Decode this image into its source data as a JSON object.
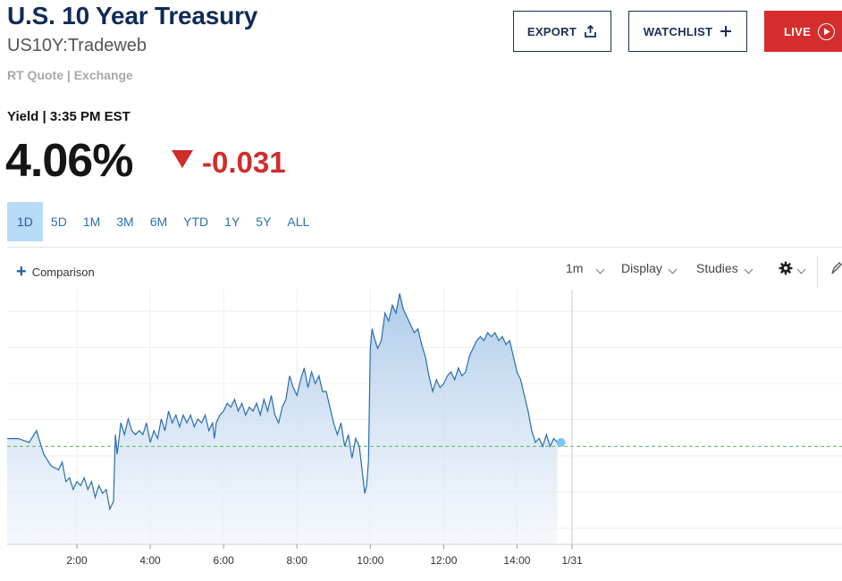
{
  "header": {
    "title": "U.S. 10 Year Treasury",
    "symbol": "US10Y:Tradeweb",
    "quote_source": "RT Quote | Exchange",
    "export_label": "EXPORT",
    "watchlist_label": "WATCHLIST",
    "live_label": "LIVE"
  },
  "quote": {
    "yield_label": "Yield | 3:35 PM EST",
    "price": "4.06%",
    "change": "-0.031",
    "change_color": "#d12c2c"
  },
  "ranges": [
    {
      "label": "1D",
      "active": true
    },
    {
      "label": "5D"
    },
    {
      "label": "1M"
    },
    {
      "label": "3M"
    },
    {
      "label": "6M"
    },
    {
      "label": "YTD"
    },
    {
      "label": "1Y"
    },
    {
      "label": "5Y"
    },
    {
      "label": "ALL"
    }
  ],
  "toolbar": {
    "comparison_label": "Comparison",
    "interval_label": "1m",
    "display_label": "Display",
    "studies_label": "Studies",
    "settings_icon": "gear-icon",
    "draw_icon": "pencil-icon"
  },
  "chart_data": {
    "type": "area",
    "line_color": "#2a6db0",
    "x_ticks": [
      "2:00",
      "4:00",
      "6:00",
      "8:00",
      "10:00",
      "12:00",
      "14:00",
      "1/31"
    ],
    "x_tick_hours": [
      2,
      4,
      6,
      8,
      10,
      12,
      14,
      15.5
    ],
    "x_range": [
      0.1,
      15.5
    ],
    "y_range": [
      4.035,
      4.1
    ],
    "grid": true,
    "reference_value": 4.06,
    "points": [
      [
        0.1,
        4.062
      ],
      [
        0.4,
        4.062
      ],
      [
        0.7,
        4.061
      ],
      [
        0.9,
        4.064
      ],
      [
        1.1,
        4.058
      ],
      [
        1.3,
        4.055
      ],
      [
        1.5,
        4.054
      ],
      [
        1.6,
        4.056
      ],
      [
        1.7,
        4.051
      ],
      [
        1.8,
        4.052
      ],
      [
        1.9,
        4.049
      ],
      [
        2.0,
        4.051
      ],
      [
        2.1,
        4.05
      ],
      [
        2.2,
        4.052
      ],
      [
        2.3,
        4.049
      ],
      [
        2.4,
        4.051
      ],
      [
        2.5,
        4.047
      ],
      [
        2.6,
        4.05
      ],
      [
        2.7,
        4.048
      ],
      [
        2.8,
        4.049
      ],
      [
        2.9,
        4.044
      ],
      [
        3.0,
        4.046
      ],
      [
        3.05,
        4.063
      ],
      [
        3.1,
        4.058
      ],
      [
        3.2,
        4.066
      ],
      [
        3.3,
        4.063
      ],
      [
        3.4,
        4.067
      ],
      [
        3.5,
        4.064
      ],
      [
        3.6,
        4.063
      ],
      [
        3.7,
        4.064
      ],
      [
        3.8,
        4.063
      ],
      [
        3.9,
        4.066
      ],
      [
        4.0,
        4.061
      ],
      [
        4.1,
        4.064
      ],
      [
        4.2,
        4.062
      ],
      [
        4.3,
        4.067
      ],
      [
        4.4,
        4.064
      ],
      [
        4.5,
        4.069
      ],
      [
        4.6,
        4.066
      ],
      [
        4.7,
        4.068
      ],
      [
        4.8,
        4.065
      ],
      [
        4.9,
        4.068
      ],
      [
        5.0,
        4.066
      ],
      [
        5.1,
        4.068
      ],
      [
        5.2,
        4.065
      ],
      [
        5.3,
        4.067
      ],
      [
        5.4,
        4.066
      ],
      [
        5.5,
        4.068
      ],
      [
        5.6,
        4.064
      ],
      [
        5.7,
        4.066
      ],
      [
        5.75,
        4.062
      ],
      [
        5.8,
        4.066
      ],
      [
        5.9,
        4.068
      ],
      [
        6.0,
        4.069
      ],
      [
        6.1,
        4.071
      ],
      [
        6.2,
        4.07
      ],
      [
        6.3,
        4.072
      ],
      [
        6.4,
        4.069
      ],
      [
        6.5,
        4.071
      ],
      [
        6.6,
        4.068
      ],
      [
        6.7,
        4.07
      ],
      [
        6.8,
        4.069
      ],
      [
        6.9,
        4.071
      ],
      [
        7.0,
        4.068
      ],
      [
        7.1,
        4.072
      ],
      [
        7.2,
        4.069
      ],
      [
        7.3,
        4.073
      ],
      [
        7.4,
        4.068
      ],
      [
        7.5,
        4.066
      ],
      [
        7.6,
        4.07
      ],
      [
        7.7,
        4.072
      ],
      [
        7.8,
        4.078
      ],
      [
        7.9,
        4.075
      ],
      [
        8.0,
        4.073
      ],
      [
        8.1,
        4.077
      ],
      [
        8.2,
        4.08
      ],
      [
        8.3,
        4.075
      ],
      [
        8.4,
        4.079
      ],
      [
        8.5,
        4.076
      ],
      [
        8.6,
        4.078
      ],
      [
        8.7,
        4.074
      ],
      [
        8.8,
        4.074
      ],
      [
        8.9,
        4.07
      ],
      [
        9.0,
        4.066
      ],
      [
        9.1,
        4.063
      ],
      [
        9.2,
        4.066
      ],
      [
        9.3,
        4.06
      ],
      [
        9.4,
        4.063
      ],
      [
        9.5,
        4.057
      ],
      [
        9.6,
        4.062
      ],
      [
        9.7,
        4.06
      ],
      [
        9.8,
        4.052
      ],
      [
        9.85,
        4.048
      ],
      [
        9.9,
        4.05
      ],
      [
        9.95,
        4.056
      ],
      [
        10.0,
        4.085
      ],
      [
        10.05,
        4.09
      ],
      [
        10.1,
        4.088
      ],
      [
        10.2,
        4.085
      ],
      [
        10.3,
        4.087
      ],
      [
        10.4,
        4.094
      ],
      [
        10.5,
        4.092
      ],
      [
        10.6,
        4.096
      ],
      [
        10.7,
        4.094
      ],
      [
        10.8,
        4.099
      ],
      [
        10.9,
        4.095
      ],
      [
        11.0,
        4.093
      ],
      [
        11.1,
        4.091
      ],
      [
        11.2,
        4.089
      ],
      [
        11.3,
        4.09
      ],
      [
        11.4,
        4.086
      ],
      [
        11.5,
        4.083
      ],
      [
        11.6,
        4.078
      ],
      [
        11.7,
        4.074
      ],
      [
        11.8,
        4.077
      ],
      [
        11.9,
        4.075
      ],
      [
        12.0,
        4.076
      ],
      [
        12.1,
        4.078
      ],
      [
        12.2,
        4.079
      ],
      [
        12.3,
        4.077
      ],
      [
        12.4,
        4.08
      ],
      [
        12.5,
        4.078
      ],
      [
        12.6,
        4.079
      ],
      [
        12.7,
        4.083
      ],
      [
        12.8,
        4.085
      ],
      [
        12.9,
        4.087
      ],
      [
        13.0,
        4.088
      ],
      [
        13.1,
        4.087
      ],
      [
        13.2,
        4.089
      ],
      [
        13.3,
        4.088
      ],
      [
        13.4,
        4.089
      ],
      [
        13.5,
        4.087
      ],
      [
        13.6,
        4.088
      ],
      [
        13.7,
        4.086
      ],
      [
        13.8,
        4.087
      ],
      [
        13.9,
        4.083
      ],
      [
        14.0,
        4.079
      ],
      [
        14.1,
        4.077
      ],
      [
        14.2,
        4.073
      ],
      [
        14.3,
        4.069
      ],
      [
        14.4,
        4.064
      ],
      [
        14.5,
        4.061
      ],
      [
        14.6,
        4.062
      ],
      [
        14.7,
        4.06
      ],
      [
        14.8,
        4.063
      ],
      [
        14.9,
        4.06
      ],
      [
        15.0,
        4.062
      ],
      [
        15.1,
        4.061
      ]
    ]
  }
}
